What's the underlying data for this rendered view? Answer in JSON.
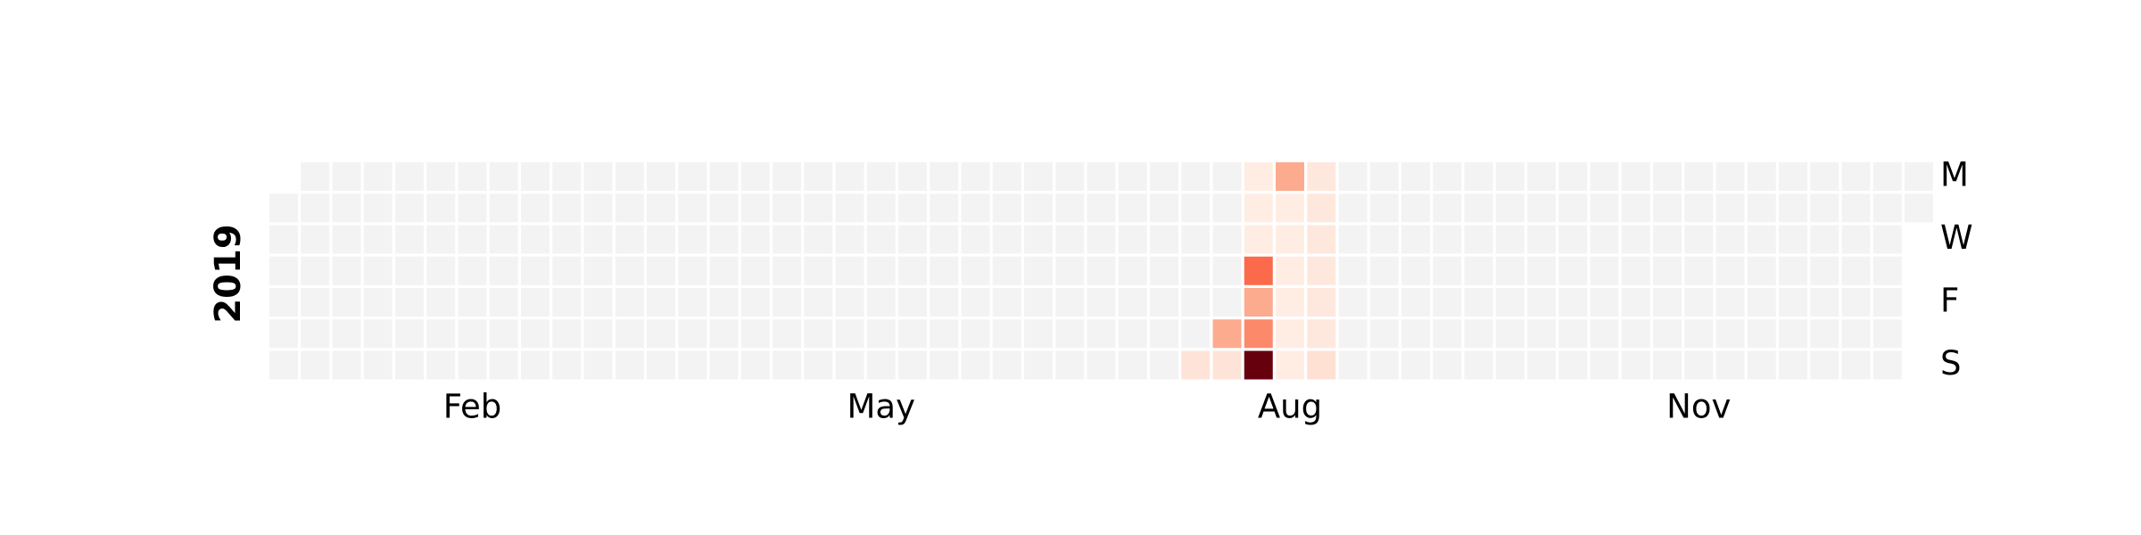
{
  "chart_data": {
    "type": "heatmap",
    "title": "",
    "year": "2019",
    "start_date": "2019-01-01",
    "end_date": "2019-12-31",
    "empty_color": "#f3f3f3",
    "colormap": "Reds",
    "value_range": [
      0,
      10
    ],
    "month_labels": [
      "Feb",
      "May",
      "Aug",
      "Nov"
    ],
    "weekday_labels": [
      "M",
      "W",
      "F",
      "S"
    ],
    "values": [
      {
        "date": "2019-07-28",
        "value": 1
      },
      {
        "date": "2019-08-03",
        "value": 3
      },
      {
        "date": "2019-08-04",
        "value": 1
      },
      {
        "date": "2019-08-05",
        "value": 0.5
      },
      {
        "date": "2019-08-06",
        "value": 0.5
      },
      {
        "date": "2019-08-07",
        "value": 0.5
      },
      {
        "date": "2019-08-08",
        "value": 5
      },
      {
        "date": "2019-08-09",
        "value": 3
      },
      {
        "date": "2019-08-10",
        "value": 4
      },
      {
        "date": "2019-08-11",
        "value": 10
      },
      {
        "date": "2019-08-12",
        "value": 3
      },
      {
        "date": "2019-08-13",
        "value": 0.5
      },
      {
        "date": "2019-08-14",
        "value": 0.5
      },
      {
        "date": "2019-08-15",
        "value": 0.5
      },
      {
        "date": "2019-08-16",
        "value": 0.5
      },
      {
        "date": "2019-08-17",
        "value": 0.5
      },
      {
        "date": "2019-08-18",
        "value": 0.5
      },
      {
        "date": "2019-08-19",
        "value": 0.8
      },
      {
        "date": "2019-08-20",
        "value": 0.8
      },
      {
        "date": "2019-08-21",
        "value": 0.8
      },
      {
        "date": "2019-08-22",
        "value": 0.8
      },
      {
        "date": "2019-08-23",
        "value": 0.8
      },
      {
        "date": "2019-08-24",
        "value": 0.8
      },
      {
        "date": "2019-08-25",
        "value": 1.2
      }
    ]
  }
}
